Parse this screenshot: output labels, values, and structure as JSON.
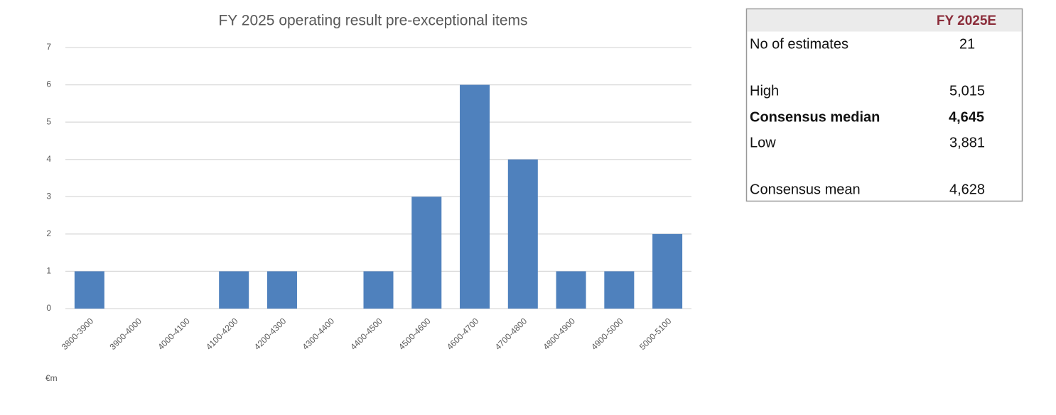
{
  "chart_data": {
    "type": "bar",
    "title": "FY 2025 operating result pre-exceptional items",
    "categories": [
      "3800-3900",
      "3900-4000",
      "4000-4100",
      "4100-4200",
      "4200-4300",
      "4300-4400",
      "4400-4500",
      "4500-4600",
      "4600-4700",
      "4700-4800",
      "4800-4900",
      "4900-5000",
      "5000-5100"
    ],
    "values": [
      1,
      0,
      0,
      1,
      1,
      0,
      1,
      3,
      6,
      4,
      1,
      1,
      2
    ],
    "color": "#4f81bd",
    "xlabel": "€m",
    "ylim": [
      0,
      7
    ],
    "yticks": [
      0,
      1,
      2,
      3,
      4,
      5,
      6,
      7
    ],
    "grid": true
  },
  "table": {
    "header": "FY 2025E",
    "rows": [
      [
        "No of estimates",
        "21"
      ],
      [
        "High",
        "5,015"
      ],
      [
        "Consensus median",
        "4,645"
      ],
      [
        "Low",
        "3,881"
      ],
      [
        "Consensus mean",
        "4,628"
      ]
    ]
  }
}
